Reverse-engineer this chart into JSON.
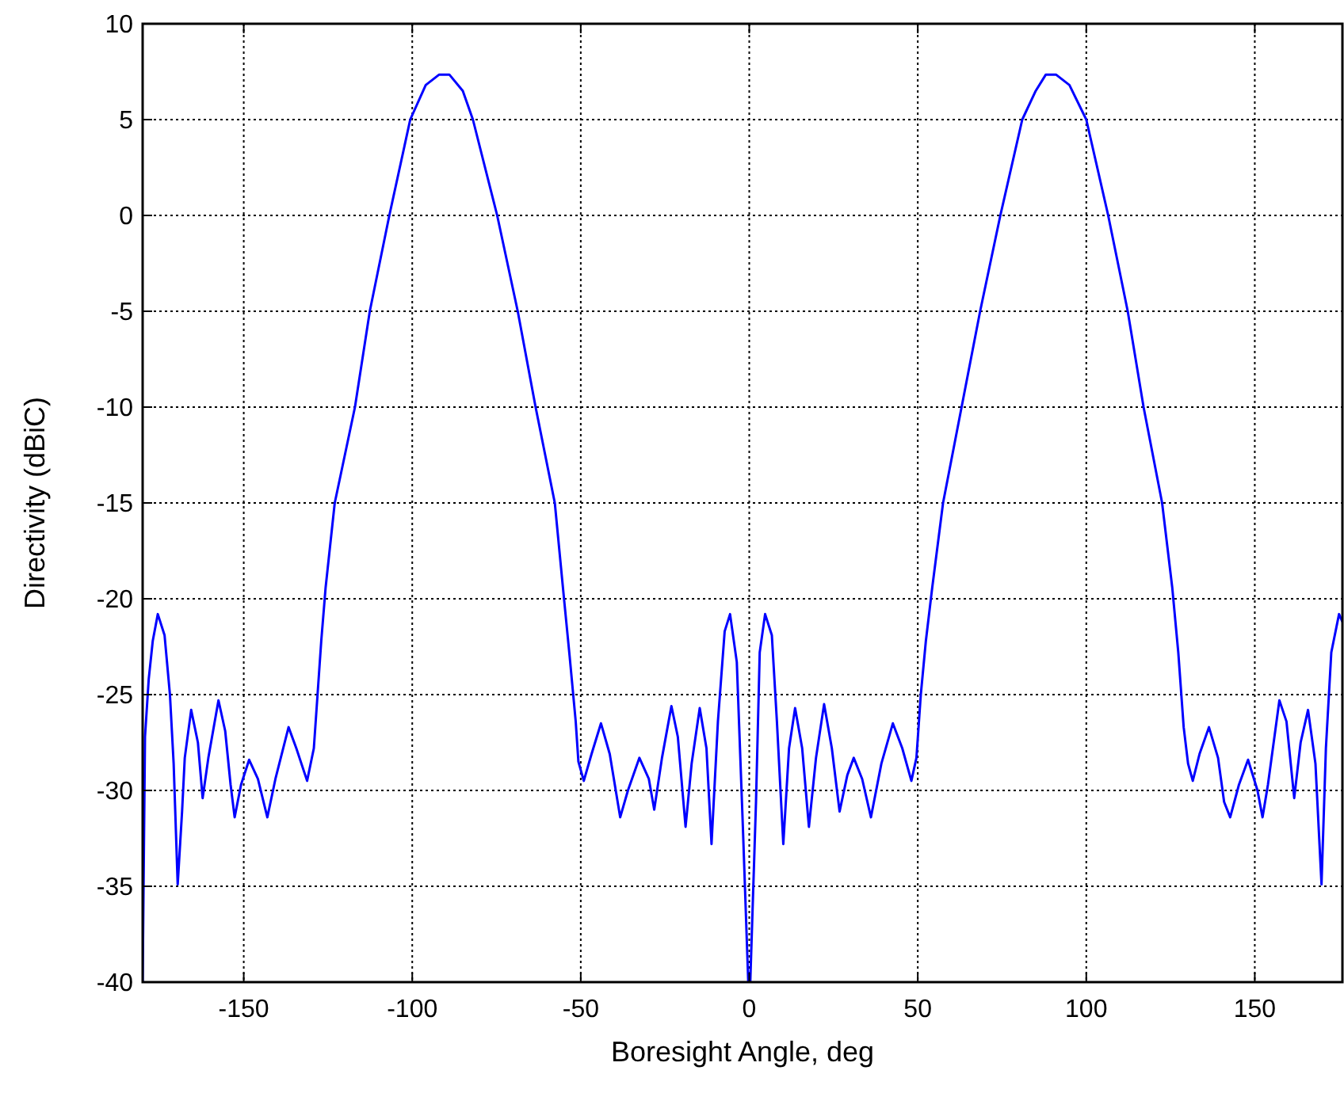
{
  "chart_data": {
    "type": "line",
    "xlabel": "Boresight Angle, deg",
    "ylabel": "Directivity (dBiC)",
    "xlim": [
      -180,
      176
    ],
    "ylim": [
      -40,
      10
    ],
    "xticks": [
      -150,
      -100,
      -50,
      0,
      50,
      100,
      150
    ],
    "yticks": [
      -40,
      -35,
      -30,
      -25,
      -20,
      -15,
      -10,
      -5,
      0,
      5,
      10
    ],
    "grid": true,
    "marker": "none",
    "line_style": "solid",
    "series": [
      {
        "color": "#0000ff",
        "x": [
          -180,
          -179.3,
          -178.2,
          -177,
          -175.5,
          -173.5,
          -171.9,
          -170.8,
          -169.6,
          -168.3,
          -167.5,
          -165.6,
          -163.6,
          -162.2,
          -160.5,
          -157.5,
          -155.5,
          -153.9,
          -152.7,
          -150.8,
          -148.4,
          -145.8,
          -143,
          -140.6,
          -136.7,
          -134.4,
          -131.2,
          -129.2,
          -128.1,
          -127,
          -125.7,
          -123,
          -117,
          -112.6,
          -106.8,
          -100.6,
          -96,
          -92,
          -89,
          -85,
          -82,
          -74.8,
          -68.7,
          -63.4,
          -57.7,
          -55.3,
          -53.3,
          -51.5,
          -50.7,
          -49.1,
          -46.8,
          -44,
          -41.4,
          -38.3,
          -36,
          -32.6,
          -29.8,
          -28.2,
          -25.9,
          -23.1,
          -21.2,
          -18.9,
          -17.1,
          -14.7,
          -12.7,
          -11.2,
          -9.3,
          -7.3,
          -5.7,
          -3.7,
          -1.9,
          -0.3,
          0.3,
          2,
          3.1,
          4.7,
          6.7,
          8.2,
          10.1,
          11.8,
          13.6,
          15.7,
          17.7,
          19.8,
          22.2,
          24.5,
          26.8,
          29.1,
          31,
          33.5,
          36.1,
          39.2,
          42.6,
          45.4,
          48.1,
          49.6,
          50.9,
          52.4,
          54.3,
          57.5,
          63,
          68.5,
          74.5,
          81,
          85,
          88,
          91,
          95,
          100,
          106.5,
          112.3,
          117,
          122.5,
          125.5,
          127.3,
          128.9,
          130.2,
          131.6,
          133.6,
          136.4,
          139.1,
          140.9,
          142.7,
          145.3,
          148,
          150.8,
          152.3,
          153.9,
          157.3,
          159.4,
          161.7,
          163.6,
          165.8,
          168,
          169.8,
          171.1,
          172.7,
          175,
          176
        ],
        "values": [
          -40,
          -27.2,
          -24.2,
          -22.2,
          -20.8,
          -21.9,
          -25,
          -28.6,
          -34.9,
          -31.1,
          -28.3,
          -25.8,
          -27.5,
          -30.4,
          -28.3,
          -25.3,
          -26.9,
          -29.7,
          -31.4,
          -29.7,
          -28.4,
          -29.4,
          -31.4,
          -29.4,
          -26.7,
          -27.8,
          -29.5,
          -27.8,
          -25,
          -22.2,
          -19.4,
          -15,
          -10,
          -5,
          0,
          5,
          6.8,
          7.35,
          7.35,
          6.5,
          5,
          0,
          -5,
          -10,
          -15,
          -19.4,
          -23,
          -26.4,
          -28.5,
          -29.5,
          -28.1,
          -26.5,
          -28.1,
          -31.4,
          -30,
          -28.3,
          -29.4,
          -31,
          -28.3,
          -25.6,
          -27.2,
          -31.9,
          -28.6,
          -25.7,
          -27.8,
          -32.8,
          -26.4,
          -21.7,
          -20.8,
          -23.3,
          -31.9,
          -40,
          -40,
          -30.6,
          -22.8,
          -20.8,
          -21.9,
          -26.4,
          -32.8,
          -27.8,
          -25.7,
          -27.8,
          -31.9,
          -28.3,
          -25.5,
          -27.8,
          -31.1,
          -29.2,
          -28.3,
          -29.4,
          -31.4,
          -28.6,
          -26.5,
          -27.8,
          -29.5,
          -28.3,
          -25,
          -22.2,
          -19.4,
          -15,
          -10,
          -5,
          0,
          5,
          6.5,
          7.35,
          7.35,
          6.8,
          5,
          0,
          -5,
          -10,
          -15,
          -19.4,
          -22.8,
          -26.7,
          -28.6,
          -29.5,
          -28.1,
          -26.7,
          -28.3,
          -30.6,
          -31.4,
          -29.7,
          -28.4,
          -30,
          -31.4,
          -29.7,
          -25.3,
          -26.4,
          -30.4,
          -27.5,
          -25.8,
          -28.6,
          -34.9,
          -27.8,
          -22.8,
          -20.8,
          -21.2
        ]
      }
    ]
  }
}
